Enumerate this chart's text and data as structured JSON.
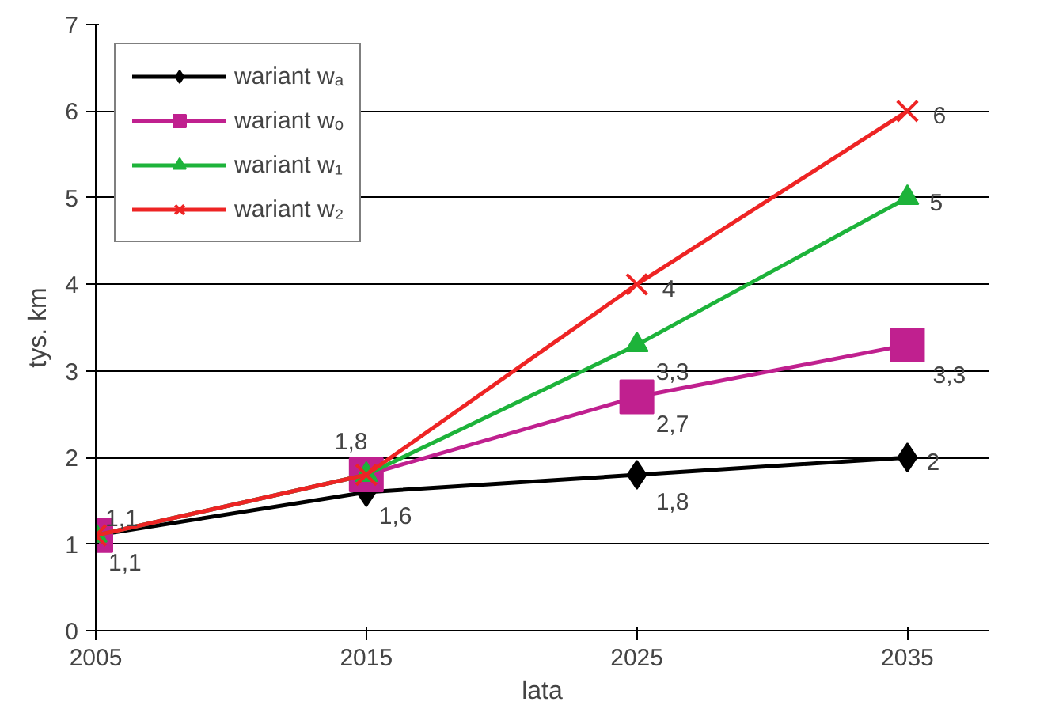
{
  "chart_data": {
    "type": "line",
    "xlabel": "lata",
    "ylabel": "tys. km",
    "x": [
      2005,
      2015,
      2025,
      2035
    ],
    "xlim": [
      2005,
      2038
    ],
    "xticks": [
      2005,
      2015,
      2025,
      2035
    ],
    "ylim": [
      0,
      7
    ],
    "yticks": [
      0,
      1,
      2,
      3,
      4,
      5,
      6,
      7
    ],
    "grid": "y",
    "legend": "top left",
    "series": [
      {
        "name": "wariant wₐ",
        "color": "#000000",
        "marker": "diamond",
        "values": [
          1.1,
          1.6,
          1.8,
          2
        ],
        "value_labels": [
          "1,1",
          "1,6",
          "1,8",
          "2"
        ]
      },
      {
        "name": "wariant wₒ",
        "color": "#c0208f",
        "marker": "square",
        "values": [
          1.1,
          1.8,
          2.7,
          3.3
        ],
        "value_labels": [
          null,
          null,
          "2,7",
          "3,3"
        ]
      },
      {
        "name": "wariant w₁",
        "color": "#1db33a",
        "marker": "triangle",
        "values": [
          1.1,
          1.8,
          3.3,
          5
        ],
        "value_labels": [
          "1,1",
          "1,8",
          "3,3",
          "5"
        ]
      },
      {
        "name": "wariant w₂",
        "color": "#ee2424",
        "marker": "cross",
        "values": [
          1.1,
          1.8,
          4,
          6
        ],
        "value_labels": [
          null,
          null,
          "4",
          "6"
        ]
      }
    ]
  }
}
